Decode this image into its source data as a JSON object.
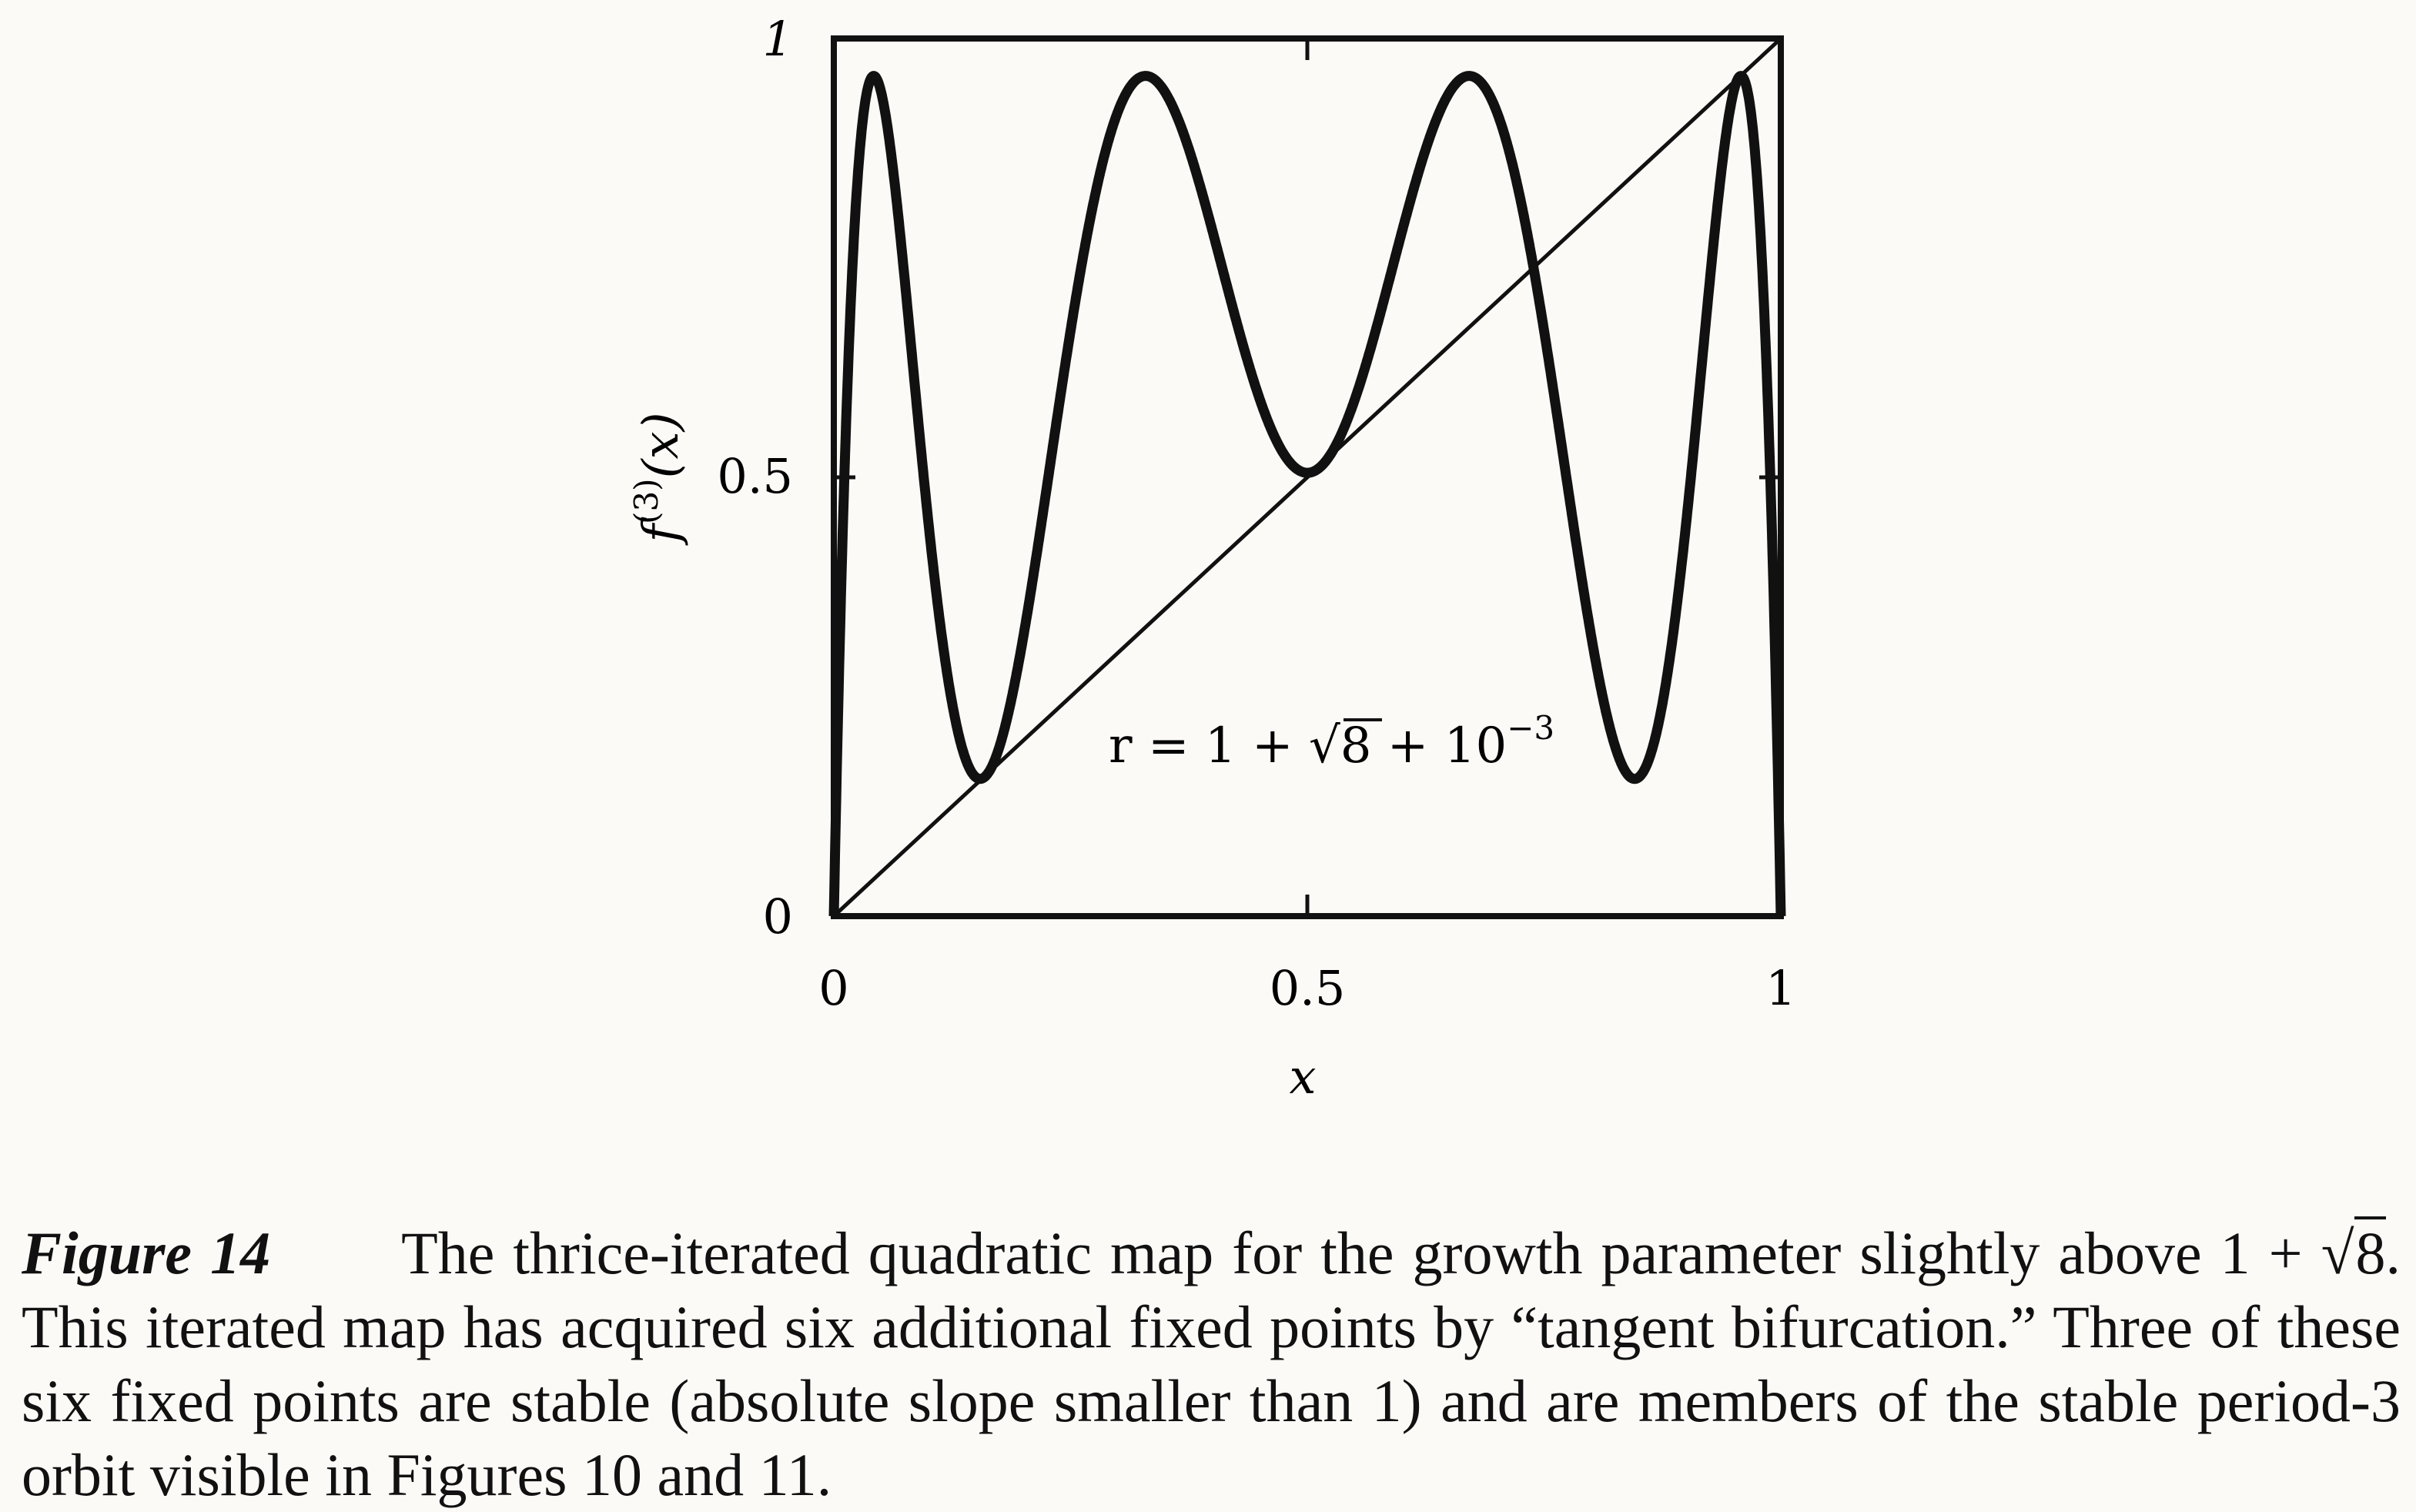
{
  "figure": {
    "caption": {
      "label": "Figure 14",
      "before_sqrt": "The thrice-iterated quadratic map for the growth parameter slightly above 1 + ",
      "sqrt_arg": "8",
      "after_sqrt": ". This iterated map has acquired six additional fixed points by “tangent bifurcation.” Three of these six fixed points are stable (absolute slope smaller than 1) and are members of the stable period-3 orbit visible in Figures 10 and 11."
    }
  },
  "chart_data": {
    "type": "line",
    "title": "",
    "xlabel": "x",
    "ylabel_base": "f",
    "ylabel_sup": "(3)",
    "ylabel_arg": "(x)",
    "xlim": [
      0,
      1
    ],
    "ylim": [
      0,
      1
    ],
    "x_ticks": [
      "0",
      "0.5",
      "1"
    ],
    "y_ticks": [
      "0",
      "0.5",
      "1"
    ],
    "grid": false,
    "annotation": {
      "lhs": "r = 1 + ",
      "sqrt_arg": "8",
      "mid": " + 10",
      "exponent": "−3"
    },
    "growth_parameter": 3.8294,
    "series": [
      {
        "function": "thrice-iterated quadratic map f(f(f(x))), f(x) = r·x·(1−x)",
        "stroke": "#111111"
      },
      {
        "function": "identity y = x",
        "stroke": "#111111"
      }
    ]
  }
}
